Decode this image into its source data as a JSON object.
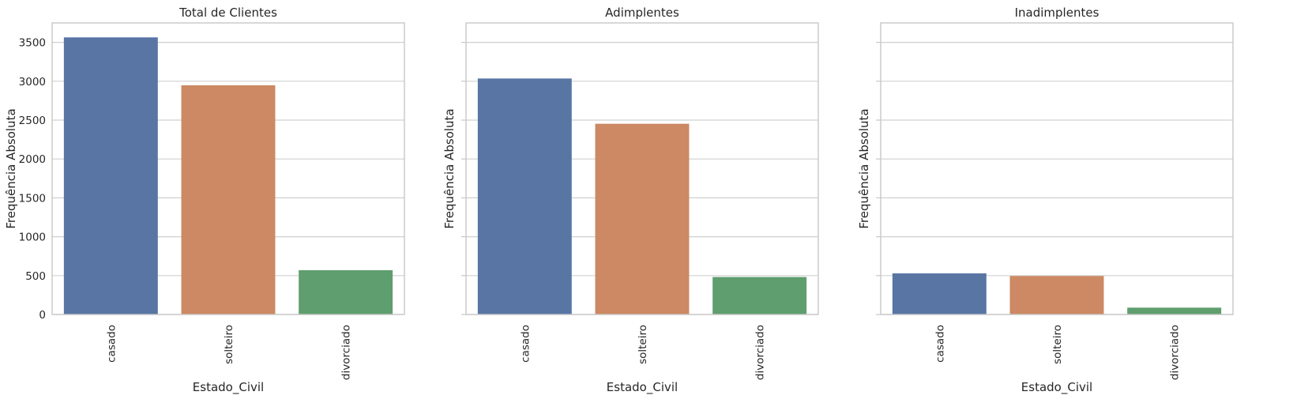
{
  "chart_data": [
    {
      "type": "bar",
      "title": "Total de Clientes",
      "xlabel": "Estado_Civil",
      "ylabel": "Frequência Absoluta",
      "categories": [
        "casado",
        "solteiro",
        "divorciado"
      ],
      "values": [
        3564,
        2948,
        570
      ],
      "colors": [
        "#5875a4",
        "#cc8963",
        "#5f9e6e"
      ],
      "ylim": [
        0,
        3750
      ],
      "yticks": [
        "0",
        "500",
        "1000",
        "1500",
        "2000",
        "2500",
        "3000",
        "3500"
      ],
      "show_ytick_labels": true,
      "grid": true
    },
    {
      "type": "bar",
      "title": "Adimplentes",
      "xlabel": "Estado_Civil",
      "ylabel": "Frequência Absoluta",
      "categories": [
        "casado",
        "solteiro",
        "divorciado"
      ],
      "values": [
        3035,
        2453,
        482
      ],
      "colors": [
        "#5875a4",
        "#cc8963",
        "#5f9e6e"
      ],
      "ylim": [
        0,
        3750
      ],
      "yticks": [
        "0",
        "500",
        "1000",
        "1500",
        "2000",
        "2500",
        "3000",
        "3500"
      ],
      "show_ytick_labels": false,
      "grid": true
    },
    {
      "type": "bar",
      "title": "Inadimplentes",
      "xlabel": "Estado_Civil",
      "ylabel": "Frequência Absoluta",
      "categories": [
        "casado",
        "solteiro",
        "divorciado"
      ],
      "values": [
        529,
        495,
        88
      ],
      "colors": [
        "#5875a4",
        "#cc8963",
        "#5f9e6e"
      ],
      "ylim": [
        0,
        3750
      ],
      "yticks": [
        "0",
        "500",
        "1000",
        "1500",
        "2000",
        "2500",
        "3000",
        "3500"
      ],
      "show_ytick_labels": false,
      "grid": true
    }
  ]
}
